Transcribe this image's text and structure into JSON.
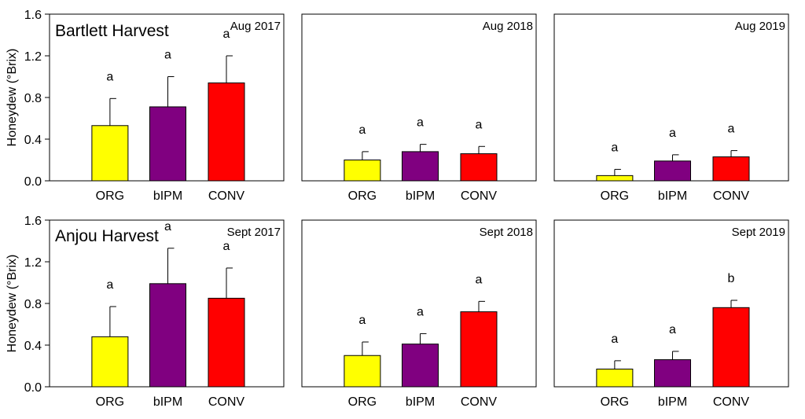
{
  "figure": {
    "ylabel": "Honeydew (°Brix)",
    "row_titles": [
      "Bartlett Harvest",
      "Anjou Harvest"
    ]
  },
  "colors": {
    "ORG": "#ffff00",
    "bIPM": "#800080",
    "CONV": "#ff0000"
  },
  "chart_data": [
    {
      "type": "bar",
      "title": "Aug 2017",
      "ylabel": "Honeydew (°Brix)",
      "ylim": [
        0,
        1.6
      ],
      "yticks": [
        "0.0",
        "0.4",
        "0.8",
        "1.2",
        "1.6"
      ],
      "categories": [
        "ORG",
        "bIPM",
        "CONV"
      ],
      "values": [
        0.53,
        0.71,
        0.94
      ],
      "errors": [
        0.26,
        0.29,
        0.26
      ],
      "letters": [
        "a",
        "a",
        "a"
      ]
    },
    {
      "type": "bar",
      "title": "Aug 2018",
      "ylim": [
        0,
        1.6
      ],
      "categories": [
        "ORG",
        "bIPM",
        "CONV"
      ],
      "values": [
        0.2,
        0.28,
        0.26
      ],
      "errors": [
        0.08,
        0.07,
        0.07
      ],
      "letters": [
        "a",
        "a",
        "a"
      ]
    },
    {
      "type": "bar",
      "title": "Aug 2019",
      "ylim": [
        0,
        1.6
      ],
      "categories": [
        "ORG",
        "bIPM",
        "CONV"
      ],
      "values": [
        0.05,
        0.19,
        0.23
      ],
      "errors": [
        0.06,
        0.06,
        0.06
      ],
      "letters": [
        "a",
        "a",
        "a"
      ]
    },
    {
      "type": "bar",
      "title": "Sept 2017",
      "ylabel": "Honeydew (°Brix)",
      "ylim": [
        0,
        1.6
      ],
      "yticks": [
        "0.0",
        "0.4",
        "0.8",
        "1.2",
        "1.6"
      ],
      "categories": [
        "ORG",
        "bIPM",
        "CONV"
      ],
      "values": [
        0.48,
        0.99,
        0.85
      ],
      "errors": [
        0.29,
        0.34,
        0.29
      ],
      "letters": [
        "a",
        "a",
        "a"
      ]
    },
    {
      "type": "bar",
      "title": "Sept 2018",
      "ylim": [
        0,
        1.6
      ],
      "categories": [
        "ORG",
        "bIPM",
        "CONV"
      ],
      "values": [
        0.3,
        0.41,
        0.72
      ],
      "errors": [
        0.13,
        0.1,
        0.1
      ],
      "letters": [
        "a",
        "a",
        "a"
      ]
    },
    {
      "type": "bar",
      "title": "Sept 2019",
      "ylim": [
        0,
        1.6
      ],
      "categories": [
        "ORG",
        "bIPM",
        "CONV"
      ],
      "values": [
        0.17,
        0.26,
        0.76
      ],
      "errors": [
        0.08,
        0.08,
        0.07
      ],
      "letters": [
        "a",
        "a",
        "b"
      ]
    }
  ]
}
